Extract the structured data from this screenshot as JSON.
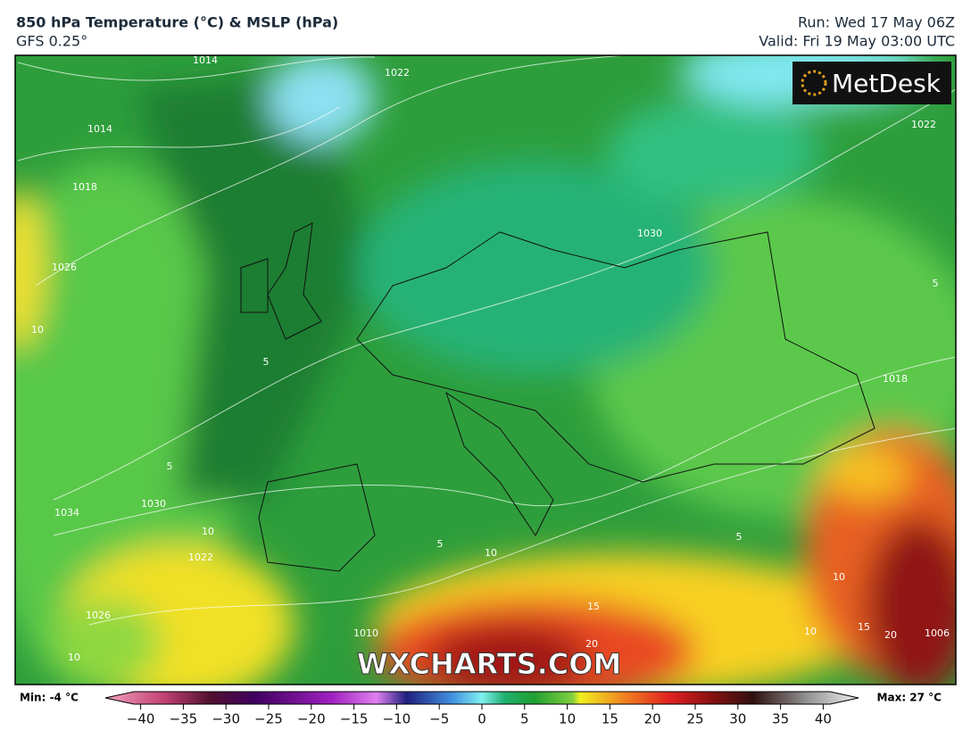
{
  "header": {
    "title": "850 hPa Temperature (°C) & MSLP (hPa)",
    "subtitle": "GFS 0.25°",
    "run": "Run: Wed 17 May 06Z",
    "valid": "Valid: Fri 19 May 03:00 UTC"
  },
  "map": {
    "logo": "MetDesk",
    "watermark": "WXCHARTS.COM",
    "contour_labels": [
      "1014",
      "1014",
      "1018",
      "1018",
      "1022",
      "1022",
      "1022",
      "1026",
      "1026",
      "1030",
      "1030",
      "1034",
      "1010",
      "1006",
      "10",
      "10",
      "10",
      "10",
      "10",
      "10",
      "5",
      "5",
      "5",
      "5",
      "5",
      "15",
      "15",
      "20",
      "20"
    ]
  },
  "colorbar": {
    "min_label": "Min: -4 °C",
    "max_label": "Max: 27 °C",
    "ticks": [
      {
        "value": -40,
        "label": "−40"
      },
      {
        "value": -35,
        "label": "−35"
      },
      {
        "value": -30,
        "label": "−30"
      },
      {
        "value": -25,
        "label": "−25"
      },
      {
        "value": -20,
        "label": "−20"
      },
      {
        "value": -15,
        "label": "−15"
      },
      {
        "value": -10,
        "label": "−10"
      },
      {
        "value": -5,
        "label": "−5"
      },
      0,
      5,
      10,
      15,
      20,
      25,
      30,
      35,
      40
    ]
  }
}
